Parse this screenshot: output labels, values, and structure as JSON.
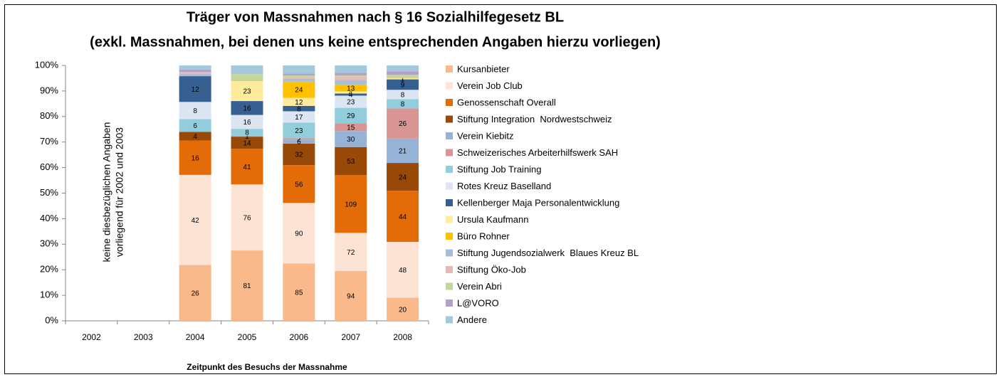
{
  "chart_data": {
    "type": "bar",
    "stacking": "percent",
    "title": [
      "Träger von Massnahmen nach § 16 Sozialhilfegesetz BL",
      "(exkl. Massnahmen, bei denen uns keine entsprechenden Angaben hierzu vorliegen)"
    ],
    "x_label": "Zeitpunkt des Besuchs der Massnahme",
    "annotation": [
      "keine diesbezüglichen Angaben",
      "vorliegend für 2002 und 2003"
    ],
    "categories": [
      "2002",
      "2003",
      "2004",
      "2005",
      "2006",
      "2007",
      "2008"
    ],
    "ylim": [
      0,
      100
    ],
    "yticks": [
      {
        "value": 0,
        "label": "0%"
      },
      {
        "value": 10,
        "label": "10%"
      },
      {
        "value": 20,
        "label": "20%"
      },
      {
        "value": 30,
        "label": "30%"
      },
      {
        "value": 40,
        "label": "40%"
      },
      {
        "value": 50,
        "label": "50%"
      },
      {
        "value": 60,
        "label": "60%"
      },
      {
        "value": 70,
        "label": "70%"
      },
      {
        "value": 80,
        "label": "80%"
      },
      {
        "value": 90,
        "label": "90%"
      },
      {
        "value": 100,
        "label": "100%"
      }
    ],
    "legend": "right",
    "series": [
      {
        "name": "Kursanbieter",
        "color": "#f9b98a",
        "values": [
          null,
          null,
          26,
          81,
          85,
          94,
          20
        ],
        "value_labels": [
          null,
          null,
          26,
          81,
          85,
          94,
          20
        ]
      },
      {
        "name": "Verein Job Club",
        "color": "#fde3d3",
        "values": [
          null,
          null,
          42,
          76,
          90,
          72,
          48
        ],
        "value_labels": [
          null,
          null,
          42,
          76,
          90,
          72,
          48
        ]
      },
      {
        "name": "Genossenschaft Overall",
        "color": "#e36c09",
        "values": [
          null,
          null,
          16,
          41,
          56,
          109,
          44
        ],
        "value_labels": [
          null,
          null,
          16,
          41,
          56,
          109,
          44
        ]
      },
      {
        "name": "Stiftung Integration  Nordwestschweiz",
        "color": "#984807",
        "values": [
          null,
          null,
          4,
          14,
          32,
          53,
          24
        ],
        "value_labels": [
          null,
          null,
          4,
          14,
          32,
          53,
          24
        ]
      },
      {
        "name": "Verein Kiebitz",
        "color": "#95b3d7",
        "values": [
          null,
          null,
          0,
          1,
          6,
          30,
          21
        ],
        "value_labels": [
          null,
          null,
          null,
          1,
          6,
          30,
          21
        ]
      },
      {
        "name": "Schweizerisches Arbeiterhilfswerk SAH",
        "color": "#d99594",
        "values": [
          null,
          null,
          0,
          0,
          2,
          15,
          26
        ],
        "value_labels": [
          null,
          null,
          null,
          null,
          2,
          15,
          26
        ]
      },
      {
        "name": "Stiftung Job Training",
        "color": "#92cddc",
        "values": [
          null,
          null,
          6,
          8,
          23,
          29,
          8
        ],
        "value_labels": [
          null,
          null,
          6,
          8,
          23,
          29,
          8
        ]
      },
      {
        "name": "Rotes Kreuz Baselland",
        "color": "#dce6f2",
        "values": [
          null,
          null,
          8,
          16,
          17,
          23,
          8
        ],
        "value_labels": [
          null,
          null,
          8,
          16,
          17,
          23,
          8
        ]
      },
      {
        "name": "Kellenberger Maja Personalentwicklung",
        "color": "#366092",
        "values": [
          null,
          null,
          12,
          16,
          8,
          4,
          9
        ],
        "value_labels": [
          null,
          null,
          12,
          16,
          8,
          4,
          9
        ]
      },
      {
        "name": "Ursula Kaufmann",
        "color": "#ffeb9c",
        "values": [
          null,
          null,
          0,
          23,
          12,
          4,
          1
        ],
        "value_labels": [
          null,
          null,
          null,
          23,
          12,
          4,
          1
        ]
      },
      {
        "name": "Büro Rohner",
        "color": "#ffc000",
        "values": [
          null,
          null,
          0,
          0,
          24,
          13,
          0
        ],
        "value_labels": [
          null,
          null,
          null,
          null,
          24,
          13,
          null
        ]
      },
      {
        "name": "Stiftung Jugendsozialwerk  Blaues Kreuz BL",
        "color": "#a6bddb",
        "values": [
          null,
          null,
          1,
          0,
          4,
          8,
          0
        ],
        "value_labels": [
          null,
          null,
          null,
          null,
          null,
          null,
          null
        ]
      },
      {
        "name": "Stiftung Öko-Job",
        "color": "#e6b9b8",
        "values": [
          null,
          null,
          1,
          0,
          2,
          6,
          0
        ],
        "value_labels": [
          null,
          null,
          null,
          null,
          null,
          null,
          null
        ]
      },
      {
        "name": "Verein Abri",
        "color": "#c3d69b",
        "values": [
          null,
          null,
          0,
          8,
          3,
          3,
          3
        ],
        "value_labels": [
          null,
          null,
          null,
          null,
          null,
          null,
          null
        ]
      },
      {
        "name": "L@VORO",
        "color": "#b3a2c7",
        "values": [
          null,
          null,
          1,
          0,
          3,
          5,
          3
        ],
        "value_labels": [
          null,
          null,
          null,
          null,
          null,
          null,
          null
        ]
      },
      {
        "name": "Andere",
        "color": "#a5c9dc",
        "values": [
          null,
          null,
          2,
          10,
          12,
          14,
          5
        ],
        "value_labels": [
          null,
          null,
          null,
          null,
          null,
          null,
          null
        ]
      }
    ]
  }
}
